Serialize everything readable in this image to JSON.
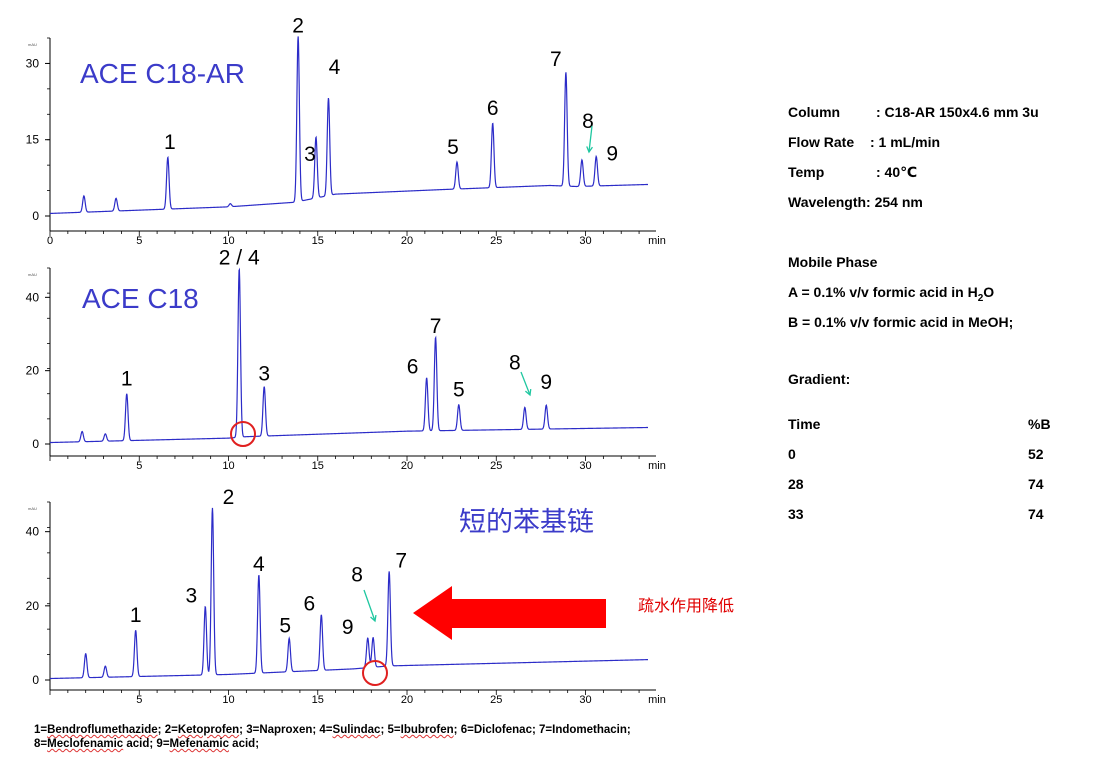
{
  "chart_data": [
    {
      "type": "line",
      "panel_label": "ACE C18-AR",
      "xlabel": "min",
      "x_ticks": [
        0,
        5,
        10,
        15,
        20,
        25,
        30
      ],
      "y_ticks": [
        0,
        15,
        30
      ],
      "y_unit": "mAU",
      "xlim": [
        0,
        33.5
      ],
      "ylim": [
        0,
        35
      ],
      "baseline": [
        [
          0,
          0.5
        ],
        [
          10,
          1.8
        ],
        [
          13.7,
          2.7
        ],
        [
          16,
          4.3
        ],
        [
          22,
          5.2
        ],
        [
          28,
          6.0
        ],
        [
          29.5,
          5.8
        ],
        [
          33.5,
          6.2
        ]
      ],
      "peaks": [
        {
          "label": "",
          "x": 1.9,
          "height": 3.2
        },
        {
          "label": "",
          "x": 3.7,
          "height": 2.5
        },
        {
          "label": "1",
          "x": 6.6,
          "height": 10.2
        },
        {
          "label": "",
          "x": 10.1,
          "height": 0.6
        },
        {
          "label": "2",
          "x": 13.9,
          "height": 32.5
        },
        {
          "label": "3",
          "x": 14.9,
          "height": 12.0
        },
        {
          "label": "4",
          "x": 15.6,
          "height": 19.2
        },
        {
          "label": "5",
          "x": 22.8,
          "height": 5.3
        },
        {
          "label": "6",
          "x": 24.8,
          "height": 12.7
        },
        {
          "label": "7",
          "x": 28.9,
          "height": 22.4
        },
        {
          "label": "8",
          "x": 29.8,
          "height": 5.2
        },
        {
          "label": "9",
          "x": 30.6,
          "height": 5.8
        }
      ]
    },
    {
      "type": "line",
      "panel_label": "ACE C18",
      "xlabel": "min",
      "x_ticks": [
        5,
        10,
        15,
        20,
        25,
        30
      ],
      "y_ticks": [
        0,
        20,
        40
      ],
      "y_unit": "mAU",
      "xlim": [
        0,
        33.5
      ],
      "ylim": [
        0,
        48
      ],
      "baseline": [
        [
          0,
          0.4
        ],
        [
          10,
          1.6
        ],
        [
          11,
          2.0
        ],
        [
          20,
          3.5
        ],
        [
          33.5,
          4.5
        ]
      ],
      "peaks": [
        {
          "label": "",
          "x": 1.8,
          "height": 2.8
        },
        {
          "label": "",
          "x": 3.1,
          "height": 2.0
        },
        {
          "label": "1",
          "x": 4.3,
          "height": 12.8
        },
        {
          "label": "2 / 4",
          "x": 10.6,
          "height": 46.0
        },
        {
          "label": "3",
          "x": 12.0,
          "height": 13.5
        },
        {
          "label": "6",
          "x": 21.1,
          "height": 14.5
        },
        {
          "label": "7",
          "x": 21.6,
          "height": 25.5
        },
        {
          "label": "5",
          "x": 22.9,
          "height": 7.0
        },
        {
          "label": "8",
          "x": 26.6,
          "height": 6.0
        },
        {
          "label": "9",
          "x": 27.8,
          "height": 6.5
        }
      ]
    },
    {
      "type": "line",
      "panel_label": "短的苯基链",
      "xlabel": "min",
      "x_ticks": [
        5,
        10,
        15,
        20,
        25,
        30
      ],
      "y_ticks": [
        0,
        20,
        40
      ],
      "y_unit": "mAU",
      "xlim": [
        0,
        33.5
      ],
      "ylim": [
        0,
        48
      ],
      "baseline": [
        [
          0,
          0.4
        ],
        [
          10,
          1.5
        ],
        [
          17,
          3.0
        ],
        [
          19,
          3.8
        ],
        [
          25,
          4.5
        ],
        [
          33.5,
          5.5
        ]
      ],
      "peaks": [
        {
          "label": "",
          "x": 2.0,
          "height": 6.5
        },
        {
          "label": "",
          "x": 3.1,
          "height": 3.0
        },
        {
          "label": "1",
          "x": 4.8,
          "height": 12.5
        },
        {
          "label": "3",
          "x": 8.7,
          "height": 18.5
        },
        {
          "label": "2",
          "x": 9.1,
          "height": 45.0
        },
        {
          "label": "4",
          "x": 11.7,
          "height": 26.5
        },
        {
          "label": "5",
          "x": 13.4,
          "height": 9.0
        },
        {
          "label": "6",
          "x": 15.2,
          "height": 15.0
        },
        {
          "label": "9",
          "x": 17.8,
          "height": 8.0
        },
        {
          "label": "8",
          "x": 18.1,
          "height": 8.0
        },
        {
          "label": "7",
          "x": 19.0,
          "height": 25.5
        }
      ]
    }
  ],
  "conditions": {
    "column_label": "Column",
    "column_value": ": C18-AR 150x4.6 mm 3u",
    "flow_label": "Flow Rate",
    "flow_value": ": 1 mL/min",
    "temp_label": "Temp",
    "temp_value": ": 40℃",
    "wavelength": "Wavelength: 254 nm"
  },
  "mobile_phase": {
    "title": "Mobile Phase",
    "a_prefix": "A = 0.1% v/v formic acid in H",
    "a_sub": "2",
    "a_suffix": "O",
    "b": "B = 0.1% v/v formic acid in MeOH;"
  },
  "gradient": {
    "title": "Gradient:",
    "col_time": "Time",
    "col_b": "%B",
    "rows": [
      {
        "time": "0",
        "b": "52"
      },
      {
        "time": "28",
        "b": "74"
      },
      {
        "time": "33",
        "b": "74"
      }
    ]
  },
  "annotation": {
    "arrow_text": "疏水作用降低"
  },
  "legend_footer": {
    "items": [
      {
        "num": "1=",
        "name": "Bendroflumethazide",
        "end": "; "
      },
      {
        "num": "2=",
        "name": "Ketoprofen",
        "end": "; "
      },
      {
        "num": "3=",
        "name": "Naproxen",
        "end": "; "
      },
      {
        "num": "4=",
        "name": "Sulindac",
        "end": "; "
      },
      {
        "num": "5=",
        "name": "Ibubrofen",
        "end": "; "
      },
      {
        "num": "6=",
        "name": "Diclofenac",
        "end": "; "
      },
      {
        "num": "7=",
        "name": "Indomethacin",
        "end": ";"
      },
      {
        "num": "8=",
        "name": "Meclofenamic",
        "end": " acid; "
      },
      {
        "num": "9=",
        "name": "Mefenamic",
        "end": " acid;"
      }
    ]
  },
  "colors": {
    "trace": "#2c2cc8",
    "panel_label": "#3b3bc9",
    "marker_arrow": "#1fc7a0",
    "circle": "#e02020",
    "big_arrow": "#ff0000"
  }
}
